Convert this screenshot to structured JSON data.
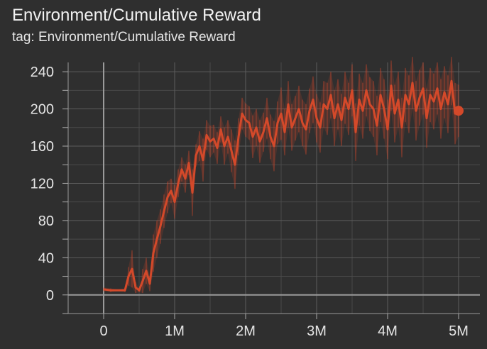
{
  "title": "Environment/Cumulative Reward",
  "subtitle": "tag: Environment/Cumulative Reward",
  "chart_data": {
    "type": "line",
    "title": "Environment/Cumulative Reward",
    "xlabel": "",
    "ylabel": "",
    "xlim": [
      -500000,
      5300000
    ],
    "ylim": [
      -20,
      250
    ],
    "x_ticks": [
      0,
      1000000,
      2000000,
      3000000,
      4000000,
      5000000
    ],
    "x_tick_labels": [
      "0",
      "1M",
      "2M",
      "3M",
      "4M",
      "5M"
    ],
    "y_ticks": [
      0,
      40,
      80,
      120,
      160,
      200,
      240
    ],
    "y_tick_labels": [
      "0",
      "40",
      "80",
      "120",
      "160",
      "200",
      "240"
    ],
    "grid": true,
    "legend": "none",
    "series": [
      {
        "color": "#d4492a",
        "smoothed": true,
        "x": [
          0,
          100000,
          200000,
          300000,
          350000,
          400000,
          450000,
          500000,
          550000,
          600000,
          650000,
          700000,
          750000,
          800000,
          850000,
          900000,
          950000,
          1000000,
          1050000,
          1100000,
          1150000,
          1200000,
          1250000,
          1300000,
          1350000,
          1400000,
          1450000,
          1500000,
          1550000,
          1600000,
          1650000,
          1700000,
          1750000,
          1800000,
          1850000,
          1900000,
          1950000,
          2000000,
          2050000,
          2100000,
          2150000,
          2200000,
          2250000,
          2300000,
          2350000,
          2400000,
          2450000,
          2500000,
          2550000,
          2600000,
          2650000,
          2700000,
          2750000,
          2800000,
          2850000,
          2900000,
          2950000,
          3000000,
          3050000,
          3100000,
          3150000,
          3200000,
          3250000,
          3300000,
          3350000,
          3400000,
          3450000,
          3500000,
          3550000,
          3600000,
          3650000,
          3700000,
          3750000,
          3800000,
          3850000,
          3900000,
          3950000,
          4000000,
          4050000,
          4100000,
          4150000,
          4200000,
          4250000,
          4300000,
          4350000,
          4400000,
          4450000,
          4500000,
          4550000,
          4600000,
          4650000,
          4700000,
          4750000,
          4800000,
          4850000,
          4900000,
          4950000,
          5000000
        ],
        "values": [
          6,
          5,
          5,
          5,
          20,
          28,
          8,
          5,
          15,
          26,
          12,
          45,
          60,
          74,
          90,
          105,
          112,
          100,
          120,
          135,
          125,
          142,
          110,
          150,
          160,
          145,
          172,
          165,
          168,
          158,
          178,
          160,
          170,
          155,
          140,
          170,
          195,
          188,
          185,
          170,
          180,
          165,
          175,
          190,
          170,
          160,
          185,
          195,
          175,
          205,
          180,
          190,
          200,
          185,
          178,
          198,
          210,
          190,
          180,
          205,
          200,
          215,
          190,
          205,
          188,
          212,
          200,
          220,
          175,
          210,
          198,
          220,
          205,
          200,
          182,
          215,
          200,
          178,
          225,
          195,
          210,
          180,
          215,
          205,
          228,
          198,
          212,
          222,
          190,
          215,
          208,
          222,
          200,
          218,
          205,
          230,
          195,
          198
        ],
        "raw_high": [
          8,
          7,
          6,
          7,
          30,
          48,
          14,
          7,
          28,
          40,
          20,
          65,
          80,
          92,
          108,
          122,
          125,
          118,
          135,
          148,
          140,
          155,
          135,
          162,
          176,
          168,
          188,
          182,
          183,
          175,
          192,
          180,
          188,
          178,
          166,
          190,
          212,
          206,
          203,
          193,
          200,
          188,
          196,
          212,
          194,
          187,
          208,
          223,
          200,
          230,
          205,
          214,
          225,
          210,
          205,
          222,
          235,
          216,
          207,
          230,
          228,
          240,
          220,
          232,
          216,
          240,
          228,
          248,
          206,
          238,
          228,
          248,
          234,
          230,
          214,
          244,
          232,
          210,
          252,
          226,
          240,
          212,
          244,
          236,
          256,
          230,
          242,
          250,
          222,
          244,
          238,
          250,
          232,
          246,
          236,
          256,
          228,
          226
        ],
        "raw_low": [
          4,
          3,
          4,
          3,
          10,
          8,
          2,
          3,
          2,
          12,
          4,
          25,
          40,
          55,
          72,
          88,
          99,
          82,
          105,
          122,
          110,
          129,
          85,
          138,
          144,
          122,
          156,
          148,
          153,
          141,
          164,
          140,
          152,
          132,
          114,
          150,
          178,
          170,
          167,
          147,
          160,
          142,
          154,
          168,
          146,
          133,
          162,
          167,
          150,
          180,
          155,
          166,
          175,
          160,
          151,
          174,
          185,
          164,
          153,
          180,
          172,
          190,
          160,
          178,
          160,
          184,
          172,
          192,
          144,
          182,
          168,
          192,
          176,
          170,
          150,
          186,
          168,
          146,
          198,
          164,
          180,
          148,
          186,
          174,
          200,
          166,
          182,
          194,
          158,
          186,
          178,
          194,
          168,
          190,
          174,
          204,
          162,
          170
        ]
      }
    ]
  }
}
